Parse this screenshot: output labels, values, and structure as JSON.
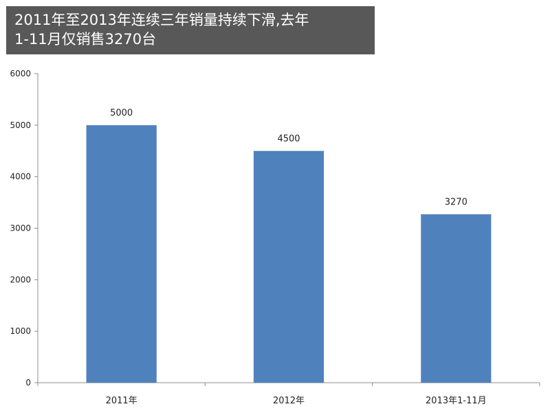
{
  "title": {
    "line1": "2011年至2013年连续三年销量持续下滑,去年",
    "line2": "1-11月仅销售3270台"
  },
  "colors": {
    "title_background": "#585858",
    "title_text": "#ffffff",
    "bar": "#4f81bd",
    "axis": "#8c8c8c"
  },
  "chart_data": {
    "type": "bar",
    "title": "2011年至2013年连续三年销量持续下滑,去年1-11月仅销售3270台",
    "categories": [
      "2011年",
      "2012年",
      "2013年1-11月"
    ],
    "values": [
      5000,
      4500,
      3270
    ],
    "data_labels": [
      "5000",
      "4500",
      "3270"
    ],
    "xlabel": "",
    "ylabel": "",
    "ylim": [
      0,
      6000
    ],
    "yticks": [
      0,
      1000,
      2000,
      3000,
      4000,
      5000,
      6000
    ],
    "grid": false,
    "legend": "none"
  }
}
